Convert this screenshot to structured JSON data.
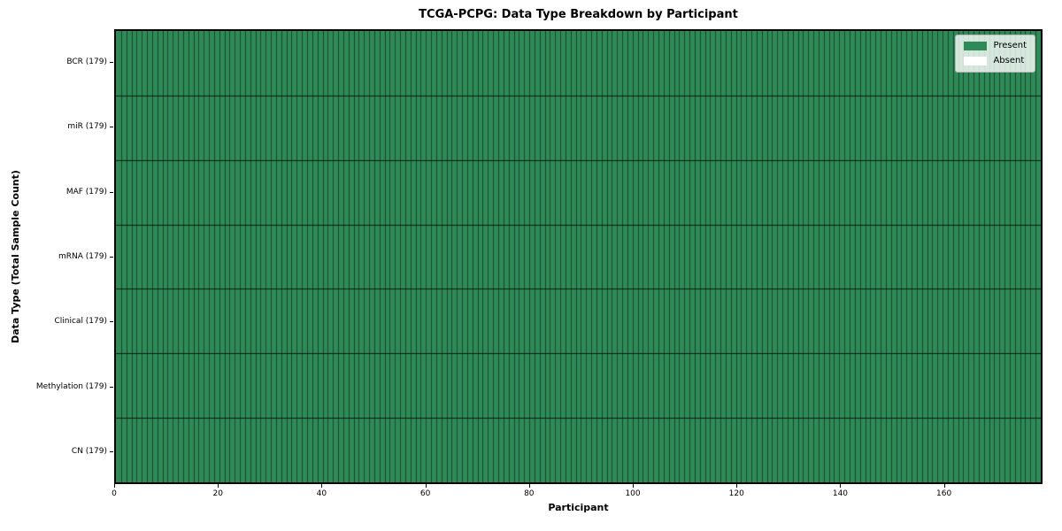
{
  "chart_data": {
    "type": "heatmap",
    "title": "TCGA-PCPG: Data Type Breakdown by Participant",
    "xlabel": "Participant",
    "ylabel": "Data Type (Total Sample Count)",
    "xlim": [
      0,
      179
    ],
    "n_participants": 179,
    "x_ticks": [
      0,
      20,
      40,
      60,
      80,
      100,
      120,
      140,
      160
    ],
    "rows": [
      {
        "label": "BCR (179)",
        "data_type": "BCR",
        "total_sample_count": 179,
        "present": 179,
        "absent": 0
      },
      {
        "label": "miR (179)",
        "data_type": "miR",
        "total_sample_count": 179,
        "present": 179,
        "absent": 0
      },
      {
        "label": "MAF (179)",
        "data_type": "MAF",
        "total_sample_count": 179,
        "present": 179,
        "absent": 0
      },
      {
        "label": "mRNA (179)",
        "data_type": "mRNA",
        "total_sample_count": 179,
        "present": 179,
        "absent": 0
      },
      {
        "label": "Clinical (179)",
        "data_type": "Clinical",
        "total_sample_count": 179,
        "present": 179,
        "absent": 0
      },
      {
        "label": "Methylation (179)",
        "data_type": "Methylation",
        "total_sample_count": 179,
        "present": 179,
        "absent": 0
      },
      {
        "label": "CN (179)",
        "data_type": "CN",
        "total_sample_count": 179,
        "present": 179,
        "absent": 0
      }
    ],
    "legend": {
      "position": "upper right",
      "items": [
        {
          "label": "Present",
          "color": "#2e8b57"
        },
        {
          "label": "Absent",
          "color": "#ffffff"
        }
      ]
    },
    "colors": {
      "present": "#2e8b57",
      "absent": "#ffffff",
      "cell_edge": "#00000080",
      "row_separator": "#000000cc",
      "frame": "#000000",
      "background": "#ffffff"
    }
  }
}
